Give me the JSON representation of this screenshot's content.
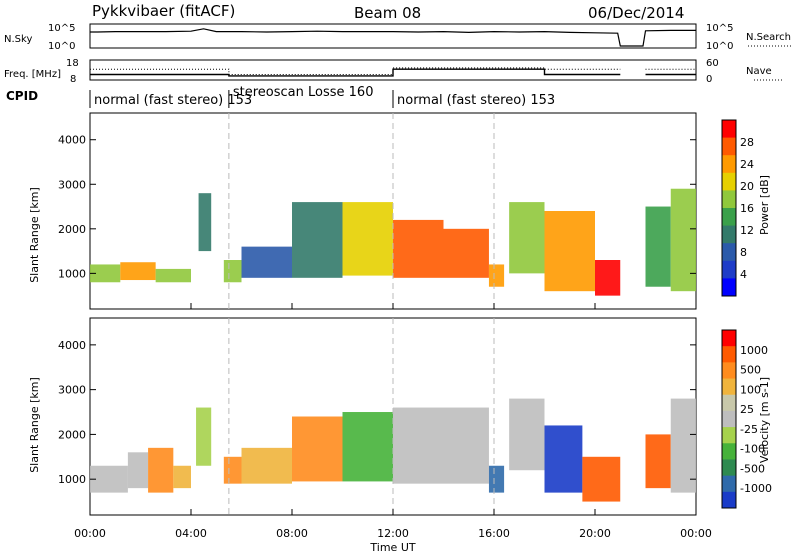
{
  "header": {
    "site": "Pykkvibaer (fitACF)",
    "beam": "Beam 08",
    "date": "06/Dec/2014"
  },
  "chart_data": [
    {
      "type": "line",
      "panel": "noise",
      "labels": {
        "left": "N.Sky",
        "right": "N.Search"
      },
      "y_ticks_left": [
        "10^5",
        "10^0"
      ],
      "y_ticks_right": [
        "10^5",
        "10^0"
      ],
      "series": [
        {
          "label": "N.Sky",
          "x": [
            0,
            0.3,
            1,
            2,
            3,
            4,
            4.5,
            5,
            6,
            7,
            8,
            9,
            10,
            11,
            12,
            13,
            14,
            15,
            16,
            17,
            18,
            19,
            20,
            20.9,
            21.0,
            21.9,
            22.0,
            23,
            24
          ],
          "values": [
            3.5,
            3.5,
            3.6,
            3.6,
            3.6,
            3.7,
            4.3,
            3.6,
            3.6,
            3.5,
            3.6,
            3.7,
            3.6,
            3.6,
            3.6,
            3.5,
            3.6,
            3.4,
            3.6,
            3.5,
            3.6,
            3.4,
            3.3,
            3.2,
            0,
            0,
            3.8,
            3.9,
            3.9
          ]
        }
      ]
    },
    {
      "type": "line",
      "panel": "frequency",
      "labels": {
        "left": "Freq. [MHz]",
        "right": "Nave"
      },
      "y_ticks_left": [
        "18",
        "8"
      ],
      "y_ticks_right": [
        "60",
        "0"
      ],
      "series": [
        {
          "label": "Freq.",
          "x": [
            0,
            3,
            5.5,
            5.5,
            12,
            12,
            18,
            18,
            21,
            21,
            22,
            22,
            24
          ],
          "values": [
            10.2,
            10.2,
            10.2,
            9.3,
            9.3,
            13.5,
            13.5,
            10.2,
            10.2,
            null,
            null,
            10.2,
            10.2
          ]
        },
        {
          "label": "Nave",
          "x": [
            0,
            5.5,
            5.5,
            12,
            12,
            18,
            18,
            21,
            21,
            22,
            22,
            24
          ],
          "values": [
            13.5,
            13.5,
            10.2,
            10.2,
            14.3,
            14.3,
            13.5,
            13.5,
            null,
            null,
            13.5,
            13.5
          ]
        }
      ]
    },
    {
      "type": "table",
      "panel": "cpid",
      "label": "CPID",
      "segments": [
        {
          "start": 0,
          "end": 5.5,
          "text": "normal (fast stereo) 153"
        },
        {
          "start": 5.5,
          "end": 12,
          "text": "stereoscan Losse 160"
        },
        {
          "start": 12,
          "end": 24,
          "text": "normal (fast stereo) 153"
        }
      ]
    },
    {
      "type": "heatmap",
      "panel": "power",
      "ylabel": "Slant Range [km]",
      "ylim": [
        200,
        4600
      ],
      "y_ticks": [
        1000,
        2000,
        3000,
        4000
      ],
      "colorbar": {
        "label": "Power [dB]",
        "ticks": [
          "4",
          "8",
          "12",
          "16",
          "20",
          "24",
          "28"
        ],
        "colors": [
          "#0000ff",
          "#1e3cc8",
          "#2b5aaa",
          "#337a6a",
          "#3aa04a",
          "#90c83c",
          "#e6d000",
          "#ff9a00",
          "#ff5a00",
          "#ff0000"
        ]
      },
      "cells": [
        {
          "x0": 0.0,
          "x1": 1.2,
          "y0": 800,
          "y1": 1200,
          "level": 5
        },
        {
          "x0": 1.2,
          "x1": 2.6,
          "y0": 850,
          "y1": 1250,
          "level": 7
        },
        {
          "x0": 2.6,
          "x1": 4.0,
          "y0": 800,
          "y1": 1100,
          "level": 5
        },
        {
          "x0": 4.3,
          "x1": 4.8,
          "y0": 1500,
          "y1": 2800,
          "level": 3
        },
        {
          "x0": 5.3,
          "x1": 6.0,
          "y0": 800,
          "y1": 1300,
          "level": 5
        },
        {
          "x0": 6.0,
          "x1": 8.0,
          "y0": 900,
          "y1": 1600,
          "level": 2
        },
        {
          "x0": 8.0,
          "x1": 10.0,
          "y0": 900,
          "y1": 2600,
          "level": 3
        },
        {
          "x0": 10.0,
          "x1": 12.0,
          "y0": 950,
          "y1": 2600,
          "level": 6
        },
        {
          "x0": 12.0,
          "x1": 14.0,
          "y0": 900,
          "y1": 2200,
          "level": 8
        },
        {
          "x0": 14.0,
          "x1": 15.8,
          "y0": 900,
          "y1": 2000,
          "level": 8
        },
        {
          "x0": 15.8,
          "x1": 16.4,
          "y0": 700,
          "y1": 1200,
          "level": 7
        },
        {
          "x0": 16.6,
          "x1": 18.0,
          "y0": 1000,
          "y1": 2600,
          "level": 5
        },
        {
          "x0": 18.0,
          "x1": 20.0,
          "y0": 600,
          "y1": 2400,
          "level": 7
        },
        {
          "x0": 20.0,
          "x1": 21.0,
          "y0": 500,
          "y1": 1300,
          "level": 9
        },
        {
          "x0": 22.0,
          "x1": 23.0,
          "y0": 700,
          "y1": 2500,
          "level": 4
        },
        {
          "x0": 23.0,
          "x1": 24.0,
          "y0": 600,
          "y1": 2900,
          "level": 5
        }
      ]
    },
    {
      "type": "heatmap",
      "panel": "velocity",
      "ylabel": "Slant Range [km]",
      "xlabel": "Time UT",
      "ylim": [
        200,
        4600
      ],
      "y_ticks": [
        1000,
        2000,
        3000,
        4000
      ],
      "x_ticks": [
        "00:00",
        "04:00",
        "08:00",
        "12:00",
        "16:00",
        "20:00",
        "00:00"
      ],
      "colorbar": {
        "label": "Velocity [m s-1]",
        "ticks": [
          "1000",
          "500",
          "100",
          "25",
          "-25",
          "-100",
          "-500",
          "-1000"
        ],
        "colors": [
          "#1a3cc8",
          "#2f6aaa",
          "#2e8a50",
          "#46b23a",
          "#a6d24c",
          "#bebebe",
          "#c8c8aa",
          "#f0b43c",
          "#ff8c1e",
          "#ff5a00",
          "#ff0000"
        ]
      },
      "cells": [
        {
          "x0": 0.0,
          "x1": 1.5,
          "y0": 700,
          "y1": 1300,
          "level": 5
        },
        {
          "x0": 1.5,
          "x1": 2.3,
          "y0": 800,
          "y1": 1600,
          "level": 5
        },
        {
          "x0": 2.3,
          "x1": 3.3,
          "y0": 700,
          "y1": 1700,
          "level": 8
        },
        {
          "x0": 3.3,
          "x1": 4.0,
          "y0": 800,
          "y1": 1300,
          "level": 7
        },
        {
          "x0": 4.2,
          "x1": 4.8,
          "y0": 1300,
          "y1": 2600,
          "level": 4
        },
        {
          "x0": 5.3,
          "x1": 6.0,
          "y0": 900,
          "y1": 1500,
          "level": 8
        },
        {
          "x0": 6.0,
          "x1": 8.0,
          "y0": 900,
          "y1": 1700,
          "level": 7
        },
        {
          "x0": 8.0,
          "x1": 10.0,
          "y0": 950,
          "y1": 2400,
          "level": 8
        },
        {
          "x0": 10.0,
          "x1": 12.0,
          "y0": 950,
          "y1": 2500,
          "level": 3
        },
        {
          "x0": 12.0,
          "x1": 15.8,
          "y0": 900,
          "y1": 2600,
          "level": 5
        },
        {
          "x0": 15.8,
          "x1": 16.4,
          "y0": 700,
          "y1": 1300,
          "level": 1
        },
        {
          "x0": 16.6,
          "x1": 18.0,
          "y0": 1200,
          "y1": 2800,
          "level": 5
        },
        {
          "x0": 18.0,
          "x1": 19.5,
          "y0": 700,
          "y1": 2200,
          "level": 0
        },
        {
          "x0": 19.5,
          "x1": 21.0,
          "y0": 500,
          "y1": 1500,
          "level": 9
        },
        {
          "x0": 22.0,
          "x1": 23.0,
          "y0": 800,
          "y1": 2000,
          "level": 9
        },
        {
          "x0": 23.0,
          "x1": 24.0,
          "y0": 700,
          "y1": 2800,
          "level": 5
        }
      ]
    }
  ]
}
